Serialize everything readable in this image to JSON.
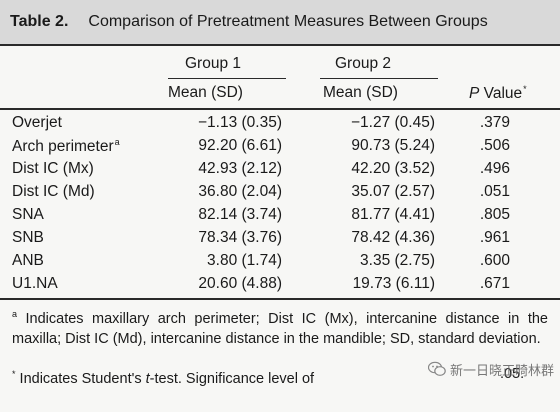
{
  "table": {
    "label": "Table 2.",
    "title": "Comparison of Pretreatment Measures Between Groups",
    "headers": {
      "group1": "Group 1",
      "group2": "Group 2",
      "mean_sd_1": "Mean (SD)",
      "mean_sd_2": "Mean (SD)",
      "p_letter": "P",
      "p_value": " Value",
      "p_mark": "*"
    },
    "rows": [
      {
        "label": "Overjet",
        "mark": "",
        "g1": "−1.13 (0.35)",
        "g2": "−1.27 (0.45)",
        "p": ".379"
      },
      {
        "label": "Arch perimeter",
        "mark": "a",
        "g1": "92.20 (6.61)",
        "g2": "90.73 (5.24)",
        "p": ".506"
      },
      {
        "label": "Dist IC (Mx)",
        "mark": "",
        "g1": "42.93 (2.12)",
        "g2": "42.20 (3.52)",
        "p": ".496"
      },
      {
        "label": "Dist IC (Md)",
        "mark": "",
        "g1": "36.80 (2.04)",
        "g2": "35.07 (2.57)",
        "p": ".051"
      },
      {
        "label": "SNA",
        "mark": "",
        "g1": "82.14 (3.74)",
        "g2": "81.77 (4.41)",
        "p": ".805"
      },
      {
        "label": "SNB",
        "mark": "",
        "g1": "78.34 (3.76)",
        "g2": "78.42 (4.36)",
        "p": ".961"
      },
      {
        "label": "ANB",
        "mark": "",
        "g1": "3.80 (1.74)",
        "g2": "3.35 (2.75)",
        "p": ".600"
      },
      {
        "label": "U1.NA",
        "mark": "",
        "g1": "20.60 (4.88)",
        "g2": "19.73 (6.11)",
        "p": ".671"
      }
    ],
    "footnotes": {
      "a_mark": "a",
      "a_text": " Indicates maxillary arch perimeter; Dist IC (Mx), intercanine distance in the maxilla; Dist IC (Md), intercanine distance in the mandible; SD, standard deviation.",
      "star_mark": "*",
      "star_text_1": " Indicates Student's ",
      "star_t": "t",
      "star_text_2": "-test. Significance level of ",
      "star_text_3": ".05."
    }
  },
  "watermark": {
    "text": "新一日晓正畸林群"
  },
  "colors": {
    "title_bar": "#d9d9d9",
    "rule": "#2a2a2a",
    "background": "#f7f7f5"
  }
}
